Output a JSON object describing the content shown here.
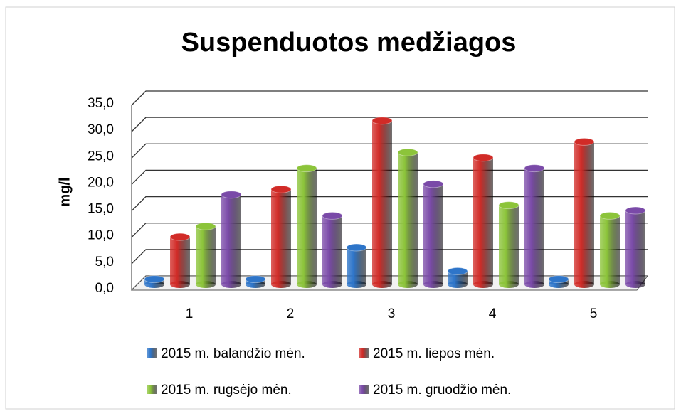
{
  "chart_data": {
    "type": "bar",
    "title": "Suspenduotos medžiagos",
    "y_label": "mg/l",
    "categories": [
      "1",
      "2",
      "3",
      "4",
      "5"
    ],
    "series": [
      {
        "name": "2015 m. balandžio mėn.",
        "color": "#2e75c9",
        "values": [
          1.0,
          1.0,
          7.0,
          2.5,
          1.0
        ]
      },
      {
        "name": "2015 m. liepos mėn.",
        "color": "#d12b27",
        "values": [
          9,
          18,
          31,
          24,
          27
        ]
      },
      {
        "name": "2015 m. rugsėjo mėn.",
        "color": "#8cc43a",
        "values": [
          11,
          22,
          25,
          15,
          13
        ]
      },
      {
        "name": "2015 m. gruodžio mėn.",
        "color": "#7a4aa8",
        "values": [
          17,
          13,
          19,
          22,
          14
        ]
      }
    ],
    "ylim": [
      0,
      35
    ],
    "yticks": [
      {
        "value": 0,
        "label": "0,0"
      },
      {
        "value": 5,
        "label": "5,0"
      },
      {
        "value": 10,
        "label": "10,0"
      },
      {
        "value": 15,
        "label": "15,0"
      },
      {
        "value": 20,
        "label": "20,0"
      },
      {
        "value": 25,
        "label": "25,0"
      },
      {
        "value": 30,
        "label": "30,0"
      },
      {
        "value": 35,
        "label": "35,0"
      }
    ],
    "grid": true
  }
}
